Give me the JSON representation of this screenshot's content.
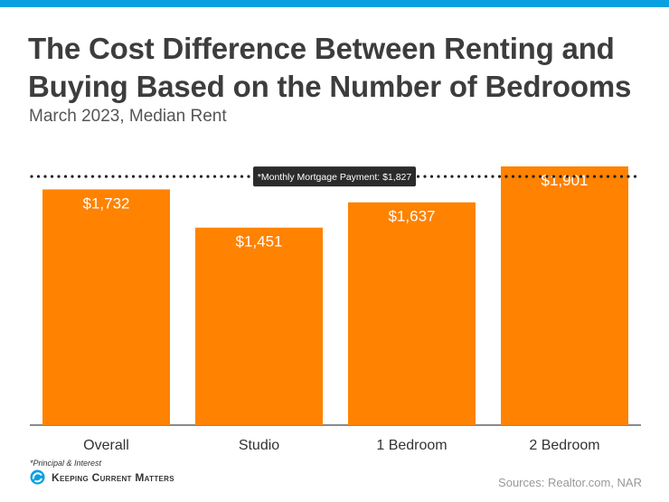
{
  "header": {
    "title_line1": "The Cost Difference Between Renting and",
    "title_line2": "Buying Based on the Number of Bedrooms",
    "subtitle": "March 2023, Median Rent"
  },
  "chart_data": {
    "type": "bar",
    "categories": [
      "Overall",
      "Studio",
      "1 Bedroom",
      "2 Bedroom"
    ],
    "values": [
      1732,
      1451,
      1637,
      1901
    ],
    "value_labels": [
      "$1,732",
      "$1,451",
      "$1,637",
      "$1,901"
    ],
    "reference_line": {
      "value": 1827,
      "label": "*Monthly Mortgage Payment: $1,827"
    },
    "ylim": [
      0,
      1901
    ],
    "xlabel": "",
    "ylabel": "",
    "grid": false
  },
  "colors": {
    "bar": "#ff8200",
    "bar_label": "#ffffff",
    "reference_line": "#222222",
    "reference_box": "#2b2b2b",
    "accent": "#0aa0e0"
  },
  "footer": {
    "footnote": "*Principal & Interest",
    "logo_text": "Keeping Current Matters",
    "sources": "Sources: Realtor.com, NAR"
  }
}
